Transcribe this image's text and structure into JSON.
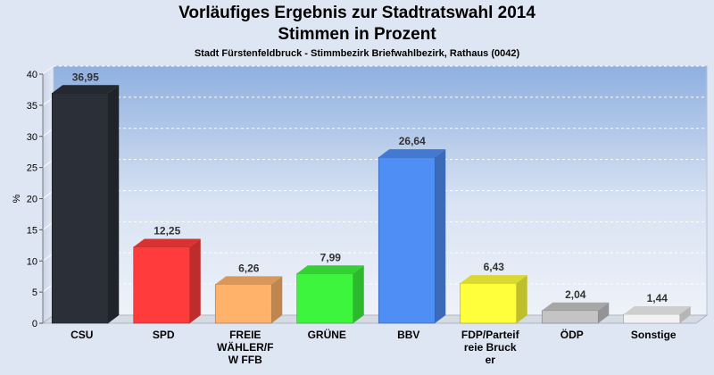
{
  "chart_data": {
    "type": "bar",
    "title": "Vorläufiges Ergebnis zur Stadtratswahl 2014",
    "subtitle": "Stimmen in Prozent",
    "caption": "Stadt Fürstenfeldbruck - Stimmbezirk Briefwahlbezirk, Rathaus (0042)",
    "ylabel": "%",
    "xlabel": "",
    "ylim": [
      0,
      40
    ],
    "yticks": [
      0,
      5,
      10,
      15,
      20,
      25,
      30,
      35,
      40
    ],
    "grid": true,
    "categories": [
      [
        "CSU"
      ],
      [
        "SPD"
      ],
      [
        "FREIE",
        "WÄHLER/F",
        "W FFB"
      ],
      [
        "GRÜNE"
      ],
      [
        "BBV"
      ],
      [
        "FDP/Parteif",
        "reie Bruck",
        "er"
      ],
      [
        "ÖDP"
      ],
      [
        "Sonstige"
      ]
    ],
    "values": [
      36.95,
      12.25,
      6.26,
      7.99,
      26.64,
      6.43,
      2.04,
      1.44
    ],
    "value_labels": [
      "36,95",
      "12,25",
      "6,26",
      "7,99",
      "26,64",
      "6,43",
      "2,04",
      "1,44"
    ],
    "colors": [
      "#2b2f38",
      "#ff3b3b",
      "#ffb26a",
      "#3df53d",
      "#4f8ef5",
      "#ffff3b",
      "#c4c4c4",
      "#f2f2f2"
    ]
  }
}
